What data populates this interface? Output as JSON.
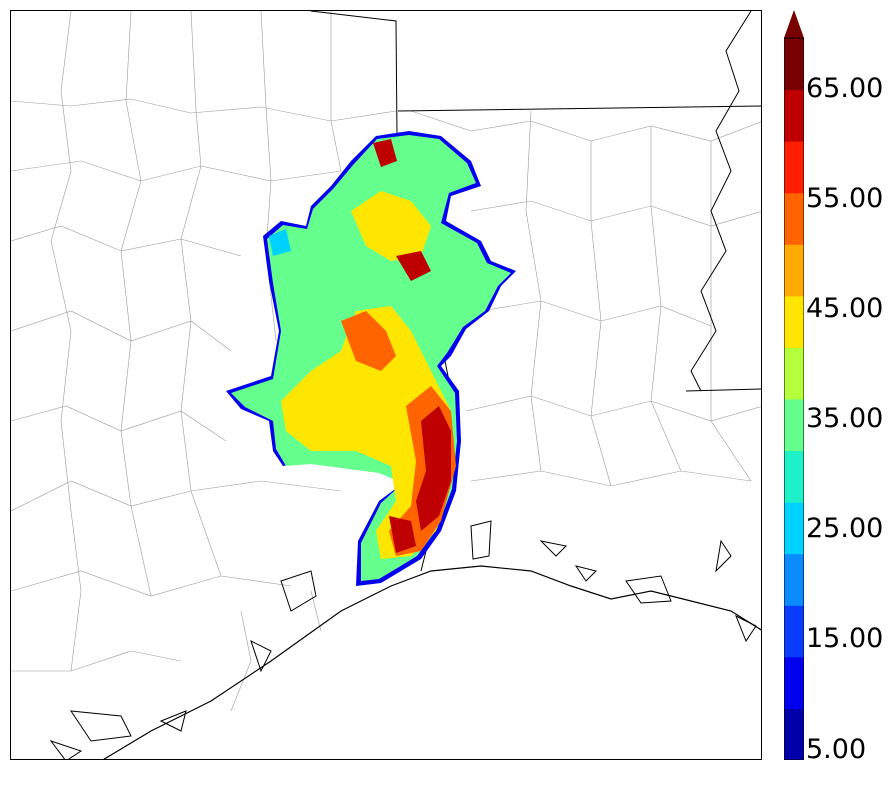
{
  "map": {
    "variable_units": "",
    "features": [
      "county-boundaries",
      "state-boundaries",
      "coastline",
      "river",
      "precipitation-field"
    ]
  },
  "colorbar": {
    "tick_labels": [
      "5.00",
      "15.00",
      "25.00",
      "35.00",
      "45.00",
      "55.00",
      "65.00"
    ],
    "levels": [
      5,
      10,
      15,
      20,
      25,
      30,
      35,
      40,
      45,
      50,
      55,
      60,
      65,
      70
    ],
    "colors": [
      "#0000aa",
      "#0000ee",
      "#0a3cff",
      "#0a8cff",
      "#00d2ff",
      "#1ef0c8",
      "#64ff8c",
      "#b4ff3c",
      "#ffe600",
      "#ffaa00",
      "#ff6400",
      "#ff1e00",
      "#be0000",
      "#780000"
    ],
    "extend": "max"
  }
}
